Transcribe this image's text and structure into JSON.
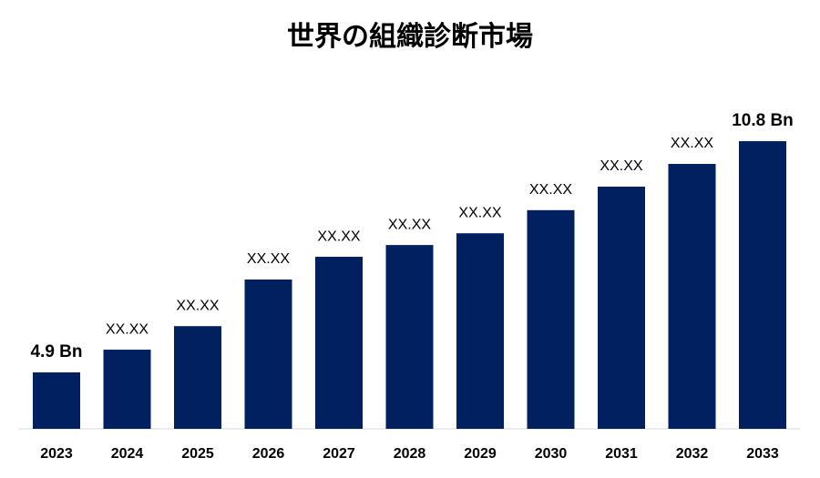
{
  "chart_data": {
    "type": "bar",
    "title": "世界の組織診断市場",
    "categories": [
      "2023",
      "2024",
      "2025",
      "2026",
      "2027",
      "2028",
      "2029",
      "2030",
      "2031",
      "2032",
      "2033"
    ],
    "values": [
      4.9,
      5.48,
      6.08,
      7.27,
      7.85,
      8.15,
      8.45,
      9.04,
      9.64,
      10.22,
      10.8
    ],
    "value_labels": [
      "4.9 Bn",
      "XX.XX",
      "XX.XX",
      "XX.XX",
      "XX.XX",
      "XX.XX",
      "XX.XX",
      "XX.XX",
      "XX.XX",
      "XX.XX",
      "10.8 Bn"
    ],
    "color": "#002060",
    "ylim": [
      3.46,
      12
    ]
  }
}
